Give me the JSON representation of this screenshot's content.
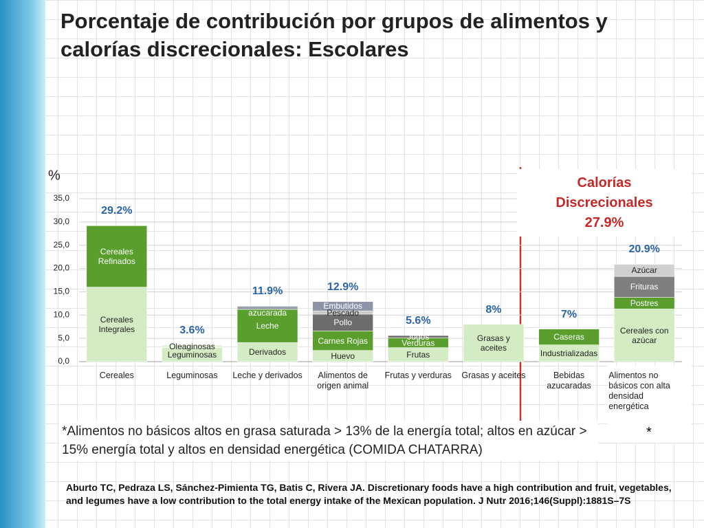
{
  "title": "Porcentaje de contribución por grupos de alimentos y calorías discrecionales: Escolares",
  "chart_data": {
    "type": "stacked-bar",
    "y_label": "%",
    "ylim": [
      0,
      35
    ],
    "yticks": [
      {
        "value": 0,
        "label": "0,0"
      },
      {
        "value": 5,
        "label": "5,0"
      },
      {
        "value": 10,
        "label": "10,0"
      },
      {
        "value": 15,
        "label": "15,0"
      },
      {
        "value": 20,
        "label": "20,0"
      },
      {
        "value": 25,
        "label": "25,0"
      },
      {
        "value": 30,
        "label": "30,0"
      },
      {
        "value": 35,
        "label": "35,0"
      }
    ],
    "grid": true,
    "stacks": [
      {
        "category": "Cereales",
        "total": 29.2,
        "total_label": "29.2%",
        "segments": [
          {
            "name": "Cereales Integrales",
            "value": 16.0,
            "color": "#d4ecc3"
          },
          {
            "name": "Cereales Refinados",
            "value": 13.2,
            "color": "#5a9f2e"
          }
        ]
      },
      {
        "category": "Leguminosas",
        "total": 3.6,
        "total_label": "3.6%",
        "segments": [
          {
            "name": "Leguminosas",
            "value": 3.0,
            "color": "#d4ecc3"
          },
          {
            "name": "Oleaginosas",
            "value": 0.6,
            "color": "#e6f4dc"
          }
        ]
      },
      {
        "category": "Leche y derivados",
        "total": 11.9,
        "total_label": "11.9%",
        "segments": [
          {
            "name": "Derivados",
            "value": 4.1,
            "color": "#d4ecc3"
          },
          {
            "name": "Leche",
            "value": 7.1,
            "color": "#5a9f2e"
          },
          {
            "name": "Leche azucarada",
            "value": 0.7,
            "color": "#9aa0a8"
          }
        ]
      },
      {
        "category": "Alimentos de origen animal",
        "total": 12.9,
        "total_label": "12.9%",
        "segments": [
          {
            "name": "Huevo",
            "value": 2.4,
            "color": "#d4ecc3"
          },
          {
            "name": "Carnes Rojas",
            "value": 4.2,
            "color": "#5a9f2e"
          },
          {
            "name": "Pollo",
            "value": 3.6,
            "color": "#6d6d6d"
          },
          {
            "name": "Pescado",
            "value": 0.7,
            "color": "#c8c8c8"
          },
          {
            "name": "Embutidos",
            "value": 2.0,
            "color": "#8d94a8"
          }
        ]
      },
      {
        "category": "Frutas y verduras",
        "total": 5.6,
        "total_label": "5.6%",
        "segments": [
          {
            "name": "Frutas",
            "value": 3.0,
            "color": "#d4ecc3"
          },
          {
            "name": "Verduras",
            "value": 2.1,
            "color": "#5a9f2e"
          },
          {
            "name": "Jugos",
            "value": 0.5,
            "color": "#6d6d6d"
          }
        ]
      },
      {
        "category": "Grasas y aceites",
        "total": 8,
        "total_label": "8%",
        "segments": [
          {
            "name": "Grasas y aceites",
            "value": 8,
            "color": "#d4ecc3"
          }
        ]
      },
      {
        "category": "Bebidas azucaradas",
        "total": 7,
        "total_label": "7%",
        "segments": [
          {
            "name": "Industrializadas",
            "value": 3.6,
            "color": "#d4ecc3"
          },
          {
            "name": "Caseras",
            "value": 3.4,
            "color": "#5a9f2e"
          }
        ]
      },
      {
        "category": "Alimentos no básicos con alta densidad energética",
        "total": 20.9,
        "total_label": "20.9%",
        "segments": [
          {
            "name": "Cereales con azúcar",
            "value": 11.3,
            "color": "#d4ecc3"
          },
          {
            "name": "Postres",
            "value": 2.5,
            "color": "#5a9f2e"
          },
          {
            "name": "Frituras",
            "value": 4.5,
            "color": "#7f7f7f"
          },
          {
            "name": "Azúcar",
            "value": 2.6,
            "color": "#d0d0d0"
          }
        ]
      }
    ],
    "annotation": {
      "title": "Calorías Discrecionales",
      "value": "27.9%"
    },
    "category_note": "*"
  },
  "footnote": "*Alimentos  no básicos altos en grasa saturada > 13% de la energía total; altos en azúcar > 15% energía total y altos en densidad energética (COMIDA CHATARRA)",
  "citation": "Aburto TC, Pedraza LS, Sánchez-Pimienta TG, Batis C, Rivera JA. Discretionary foods have a high contribution and fruit, vegetables, and legumes have a low contribution to the total energy intake of the Mexican population. J Nutr 2016;146(Suppl):1881S–7S"
}
